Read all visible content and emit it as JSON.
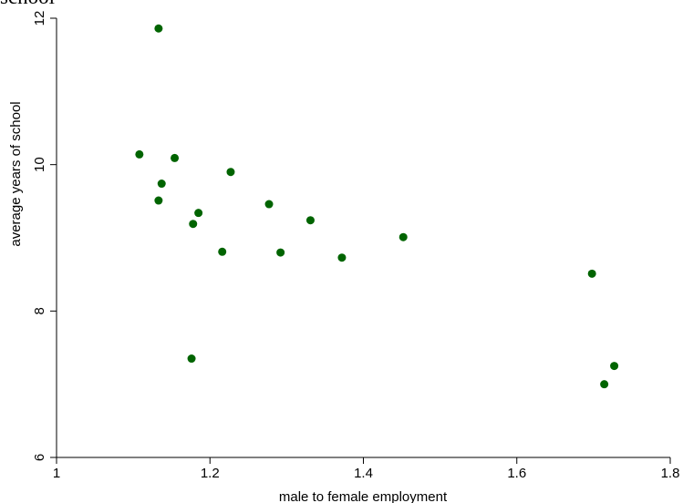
{
  "chart_data": {
    "type": "scatter",
    "title": "school",
    "xlabel": "male to female employment",
    "ylabel": "average years of school",
    "xlim": [
      1,
      1.8
    ],
    "ylim": [
      6,
      12
    ],
    "xticks": [
      1,
      1.2,
      1.4,
      1.6,
      1.8
    ],
    "yticks": [
      6,
      8,
      10,
      12
    ],
    "xtick_labels": [
      "1",
      "1.2",
      "1.4",
      "1.6",
      "1.8"
    ],
    "ytick_labels": [
      "6",
      "8",
      "10",
      "12"
    ],
    "grid": false,
    "legend": "none",
    "marker_color": "#006400",
    "points": [
      {
        "x": 1.133,
        "y": 11.86
      },
      {
        "x": 1.108,
        "y": 10.14
      },
      {
        "x": 1.154,
        "y": 10.09
      },
      {
        "x": 1.227,
        "y": 9.9
      },
      {
        "x": 1.137,
        "y": 9.74
      },
      {
        "x": 1.133,
        "y": 9.51
      },
      {
        "x": 1.277,
        "y": 9.46
      },
      {
        "x": 1.185,
        "y": 9.34
      },
      {
        "x": 1.331,
        "y": 9.24
      },
      {
        "x": 1.178,
        "y": 9.19
      },
      {
        "x": 1.452,
        "y": 9.01
      },
      {
        "x": 1.216,
        "y": 8.81
      },
      {
        "x": 1.292,
        "y": 8.8
      },
      {
        "x": 1.372,
        "y": 8.73
      },
      {
        "x": 1.698,
        "y": 8.51
      },
      {
        "x": 1.176,
        "y": 7.35
      },
      {
        "x": 1.727,
        "y": 7.25
      },
      {
        "x": 1.714,
        "y": 7.0
      }
    ]
  }
}
